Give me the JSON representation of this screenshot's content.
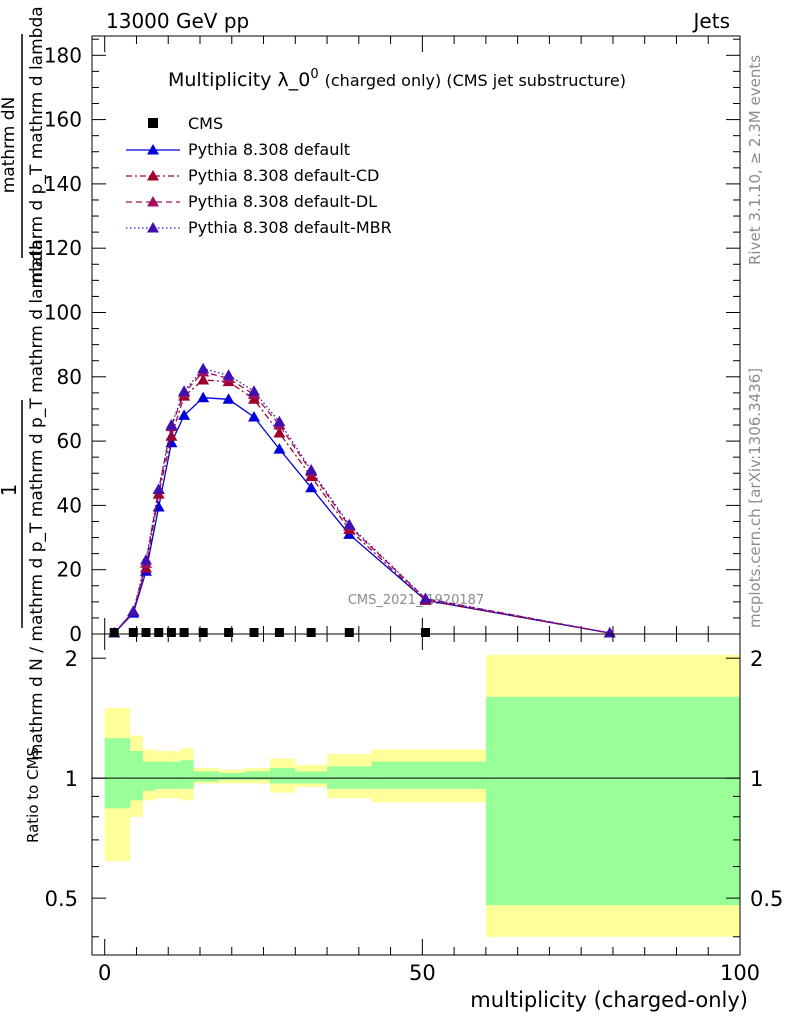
{
  "header": {
    "left": "13000 GeV pp",
    "right": "Jets"
  },
  "side_labels": {
    "rivet": "Rivet 3.1.10, ≥ 2.3M events",
    "mcplots": "mcplots.cern.ch [arXiv:1306.3436]"
  },
  "watermark": "CMS_2021_I1920187",
  "chart_data": [
    {
      "type": "line",
      "title": "Multiplicity λ_0",
      "title_sup": "0",
      "title_note": "(charged only) (CMS jet substructure)",
      "ylabel_top": "mathrm dN",
      "ylabel_mid": "mathrm d p_T mathrm d lambda",
      "ylabel_num": "1",
      "ylabel_bottom": "mathrm d N / mathrm d p_T mathrm d p_T mathrm d lambda",
      "xlim": [
        -2,
        100
      ],
      "ylim": [
        0,
        186
      ],
      "xticks": [
        "0",
        "50",
        "100"
      ],
      "yticks": [
        "0",
        "20",
        "40",
        "60",
        "80",
        "100",
        "120",
        "140",
        "160",
        "180"
      ],
      "legend_position": "top-left",
      "reference": {
        "name": "CMS",
        "x": [
          1.5,
          4.5,
          6.5,
          8.5,
          10.5,
          12.5,
          15.5,
          19.5,
          23.5,
          27.5,
          32.5,
          38.5,
          50.5
        ],
        "y": [
          0,
          0,
          0,
          0,
          0,
          0,
          0,
          0,
          0,
          0,
          0,
          0,
          0
        ]
      },
      "series": [
        {
          "name": "Pythia 8.308 default",
          "color": "#0000dd",
          "dash": "solid",
          "x": [
            1.5,
            4.5,
            6.5,
            8.5,
            10.5,
            12.5,
            15.5,
            19.5,
            23.5,
            27.5,
            32.5,
            38.5,
            50.5,
            79.5
          ],
          "y": [
            0.3,
            6.5,
            19.5,
            39.5,
            59.5,
            68,
            73.5,
            73,
            67.5,
            57.5,
            45.5,
            31,
            10.5,
            0.3
          ]
        },
        {
          "name": "Pythia 8.308 default-CD",
          "color": "#a0002a",
          "dash": "6,3,2,3",
          "x": [
            1.5,
            4.5,
            6.5,
            8.5,
            10.5,
            12.5,
            15.5,
            19.5,
            23.5,
            27.5,
            32.5,
            38.5,
            50.5,
            79.5
          ],
          "y": [
            0.3,
            7,
            20.5,
            43.5,
            61.5,
            74,
            79,
            78.5,
            73,
            62.5,
            49,
            32.5,
            10.5,
            0.3
          ]
        },
        {
          "name": "Pythia 8.308 default-DL",
          "color": "#a0105a",
          "dash": "6,4",
          "x": [
            1.5,
            4.5,
            6.5,
            8.5,
            10.5,
            12.5,
            15.5,
            19.5,
            23.5,
            27.5,
            32.5,
            38.5,
            50.5,
            79.5
          ],
          "y": [
            0.3,
            7,
            22,
            45,
            64.5,
            75,
            81.5,
            79.5,
            74.5,
            65,
            50.5,
            33.5,
            11,
            0.3
          ]
        },
        {
          "name": "Pythia 8.308 default-MBR",
          "color": "#4010b0",
          "dash": "1.5,2.5",
          "x": [
            1.5,
            4.5,
            6.5,
            8.5,
            10.5,
            12.5,
            15.5,
            19.5,
            23.5,
            27.5,
            32.5,
            38.5,
            50.5,
            79.5
          ],
          "y": [
            0.3,
            7,
            23,
            45,
            65,
            75.5,
            82.5,
            80.5,
            75.5,
            66,
            51,
            34,
            11,
            0.3
          ]
        }
      ]
    },
    {
      "type": "area",
      "ylabel": "Ratio to CMS",
      "xlabel": "multiplicity (charged-only)",
      "xlim": [
        -2,
        100
      ],
      "ylim": [
        0.36,
        2.3
      ],
      "log_y": true,
      "yticks": [
        "0.5",
        "1",
        "2"
      ],
      "xticks": [
        "0",
        "50",
        "100"
      ],
      "bands": {
        "edges": [
          0,
          4,
          6,
          8,
          10,
          12,
          14,
          18,
          22,
          26,
          30,
          35,
          42,
          60,
          100
        ],
        "stat_low": [
          0.84,
          0.88,
          0.93,
          0.94,
          0.94,
          0.94,
          0.98,
          0.99,
          0.99,
          0.97,
          0.97,
          0.94,
          0.94,
          0.48
        ],
        "stat_high": [
          1.26,
          1.17,
          1.1,
          1.1,
          1.1,
          1.11,
          1.04,
          1.03,
          1.04,
          1.06,
          1.04,
          1.07,
          1.1,
          1.6
        ],
        "total_low": [
          0.62,
          0.8,
          0.88,
          0.89,
          0.89,
          0.88,
          0.97,
          0.97,
          0.97,
          0.92,
          0.95,
          0.89,
          0.87,
          0.4
        ],
        "total_high": [
          1.5,
          1.28,
          1.18,
          1.17,
          1.17,
          1.19,
          1.06,
          1.05,
          1.06,
          1.12,
          1.08,
          1.15,
          1.18,
          2.04
        ],
        "stat_color": "#99ff99",
        "total_color": "#ffff99"
      }
    }
  ]
}
